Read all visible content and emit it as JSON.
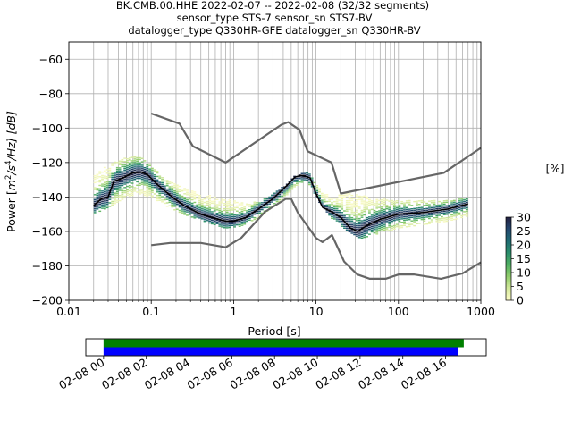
{
  "chart_data": [
    {
      "type": "heatmap",
      "title_lines": [
        "BK.CMB.00.HHE   2022-02-07 -- 2022-02-08  (32/32 segments)",
        "sensor_type STS-7 sensor_sn STS7-BV",
        "datalogger_type Q330HR-GFE datalogger_sn Q330HR-BV"
      ],
      "xlabel": "Period [s]",
      "ylabel_parts": {
        "prefix": "Power [",
        "m": "m",
        "exp2": "2",
        "s": "/s",
        "exp4": "4",
        "suffix": "/Hz] [dB]"
      },
      "x_scale": "log",
      "xlim": [
        0.01,
        1000
      ],
      "ylim": [
        -200,
        -50
      ],
      "x_ticks": [
        0.01,
        0.1,
        1,
        10,
        100,
        1000
      ],
      "x_tick_labels": [
        "0.01",
        "0.1",
        "1",
        "10",
        "100",
        "1000"
      ],
      "y_ticks": [
        -200,
        -180,
        -160,
        -140,
        -120,
        -100,
        -80,
        -60
      ],
      "y_tick_labels": [
        "−200",
        "−180",
        "−160",
        "−140",
        "−120",
        "−100",
        "−80",
        "−60"
      ],
      "grid": true,
      "colorbar": {
        "label": "[%]",
        "range": [
          0,
          30
        ],
        "ticks": [
          0,
          5,
          10,
          15,
          20,
          25,
          30
        ],
        "tick_labels": [
          "0",
          "5",
          "10",
          "15",
          "20",
          "25",
          "30"
        ],
        "colormap": [
          "#fefcc7",
          "#d2e89a",
          "#8fcc6b",
          "#4fae63",
          "#2a8d6c",
          "#1f6a73",
          "#24466e",
          "#241f3e"
        ]
      },
      "series": [
        {
          "role": "high-noise-model",
          "color": "#666666",
          "x": [
            0.1,
            0.22,
            0.32,
            0.8,
            3.8,
            4.6,
            6.3,
            7.9,
            15.4,
            20,
            354.8,
            1000
          ],
          "y": [
            -91.5,
            -97.4,
            -110.5,
            -120,
            -98,
            -96.5,
            -101,
            -113.5,
            -120,
            -138,
            -126,
            -111.5
          ]
        },
        {
          "role": "low-noise-model",
          "color": "#666666",
          "x": [
            0.1,
            0.17,
            0.4,
            0.8,
            1.24,
            2.4,
            4.3,
            5,
            6,
            10,
            12,
            15.6,
            21.9,
            31.6,
            45,
            70,
            101,
            154,
            328,
            600,
            1000
          ],
          "y": [
            -168,
            -166.7,
            -166.7,
            -169.2,
            -163.7,
            -148.6,
            -141.1,
            -141.1,
            -149,
            -163.8,
            -166.2,
            -162.1,
            -177.5,
            -185,
            -187.5,
            -187.5,
            -185,
            -185,
            -187.5,
            -184.4,
            -178
          ]
        },
        {
          "role": "mode",
          "color": "#000000",
          "x": [
            0.02,
            0.025,
            0.03,
            0.035,
            0.045,
            0.06,
            0.075,
            0.09,
            0.12,
            0.18,
            0.25,
            0.4,
            0.6,
            0.8,
            1,
            1.4,
            2,
            3,
            4.5,
            5.5,
            6.5,
            7.5,
            8.5,
            10,
            12,
            16,
            20,
            26,
            32,
            40,
            60,
            100,
            200,
            400,
            700
          ],
          "y": [
            -145,
            -141,
            -140,
            -131,
            -129,
            -126,
            -125.5,
            -127,
            -133,
            -140,
            -145,
            -150,
            -152.5,
            -154,
            -154,
            -152,
            -147,
            -141,
            -133,
            -128.5,
            -127.5,
            -128,
            -129,
            -138,
            -146,
            -149,
            -152,
            -158,
            -160,
            -157,
            -153,
            -150,
            -149,
            -147,
            -144
          ]
        }
      ],
      "density_band": {
        "x": [
          0.02,
          0.03,
          0.05,
          0.07,
          0.1,
          0.15,
          0.25,
          0.5,
          0.8,
          1.2,
          2,
          4,
          5.5,
          7,
          8.5,
          11,
          16,
          25,
          35,
          60,
          100,
          200,
          400,
          700
        ],
        "lower": [
          -150,
          -146,
          -140,
          -138,
          -140,
          -145,
          -150,
          -155,
          -158,
          -157,
          -152,
          -141,
          -134,
          -131,
          -133,
          -143,
          -153,
          -160,
          -164,
          -161,
          -158,
          -156,
          -154,
          -151
        ],
        "upper": [
          -128,
          -121,
          -117,
          -116,
          -121,
          -130,
          -135,
          -139,
          -141,
          -143,
          -143,
          -134,
          -128,
          -126,
          -126,
          -135,
          -140,
          -137,
          -139,
          -141,
          -142,
          -142,
          -142,
          -140
        ]
      }
    },
    {
      "type": "timeline",
      "x_tick_labels": [
        "02-08 00",
        "02-08 02",
        "02-08 04",
        "02-08 06",
        "02-08 08",
        "02-08 10",
        "02-08 12",
        "02-08 14",
        "02-08 16"
      ],
      "coverage_bars": [
        {
          "color": "#008000",
          "start_hour": 0,
          "end_hour": 16.85
        },
        {
          "color": "#0000ff",
          "start_hour": 0,
          "end_hour": 16.6
        }
      ],
      "axis_range_hours": [
        -0.83,
        17.9
      ]
    }
  ]
}
